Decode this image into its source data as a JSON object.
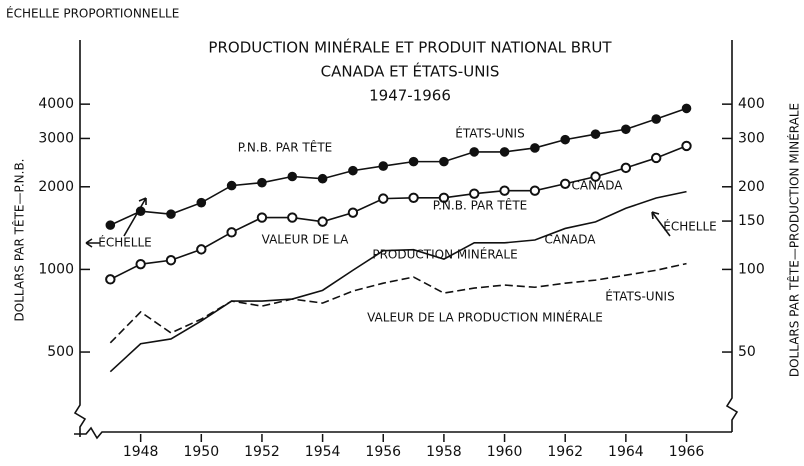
{
  "chart_data": {
    "type": "line",
    "title": [
      "PRODUCTION MINÉRALE ET PRODUIT NATIONAL BRUT",
      "CANADA ET ÉTATS-UNIS",
      "1947-1966"
    ],
    "scale_note": "ÉCHELLE PROPORTIONNELLE",
    "ylabel": "DOLLARS PAR TÊTE—P.N.B.",
    "y2label": "DOLLARS PAR TÊTE—PRODUCTION MINÉRALE",
    "x": [
      1947,
      1948,
      1949,
      1950,
      1951,
      1952,
      1953,
      1954,
      1955,
      1956,
      1957,
      1958,
      1959,
      1960,
      1961,
      1962,
      1963,
      1964,
      1965,
      1966
    ],
    "xlim": [
      1946,
      1967.5
    ],
    "xticks": [
      1948,
      1950,
      1952,
      1954,
      1956,
      1958,
      1960,
      1962,
      1964,
      1966
    ],
    "ylim": [
      260,
      6300
    ],
    "yticks": [
      500,
      1000,
      2000,
      3000,
      4000
    ],
    "y2lim": [
      26,
      630
    ],
    "y2ticks": [
      50,
      100,
      150,
      200,
      300,
      400
    ],
    "log_scale": true,
    "series": [
      {
        "color": "#111111",
        "marker": "filled",
        "dash": false,
        "values": [
          1450,
          1630,
          1590,
          1750,
          2020,
          2070,
          2180,
          2140,
          2290,
          2380,
          2470,
          2470,
          2680,
          2680,
          2770,
          2970,
          3110,
          3240,
          3530,
          3860
        ]
      },
      {
        "color": "#111111",
        "marker": "open",
        "dash": false,
        "values": [
          920,
          1045,
          1080,
          1183,
          1365,
          1545,
          1545,
          1493,
          1610,
          1811,
          1824,
          1824,
          1888,
          1936,
          1936,
          2051,
          2178,
          2344,
          2547,
          2818
        ]
      },
      {
        "color": "#111111",
        "marker": "none",
        "dash": false,
        "axis": "y2",
        "values": [
          42.4,
          53.6,
          55.8,
          64.9,
          76.7,
          76.7,
          78.0,
          83.9,
          99.3,
          117,
          118,
          109,
          125,
          125,
          128,
          141,
          149,
          167,
          182,
          192
        ]
      },
      {
        "color": "#111111",
        "marker": "none",
        "dash": true,
        "axis": "y2",
        "values": [
          54,
          70,
          58.7,
          65.9,
          76.7,
          73.5,
          78.0,
          75.4,
          83.4,
          89.1,
          93.8,
          82,
          85.5,
          87.7,
          86.1,
          89.1,
          91.4,
          95.3,
          99.3,
          105
        ]
      }
    ],
    "annotations": [
      "P.N.B. PAR TÊTE",
      "ÉTATS-UNIS",
      "CANADA",
      "P.N.B. PAR TÊTE",
      "VALEUR DE LA",
      "PRODUCTION MINÉRALE",
      "CANADA",
      "ÉCHELLE",
      "ÉCHELLE",
      "ÉTATS-UNIS",
      "VALEUR DE LA PRODUCTION MINÉRALE"
    ]
  }
}
